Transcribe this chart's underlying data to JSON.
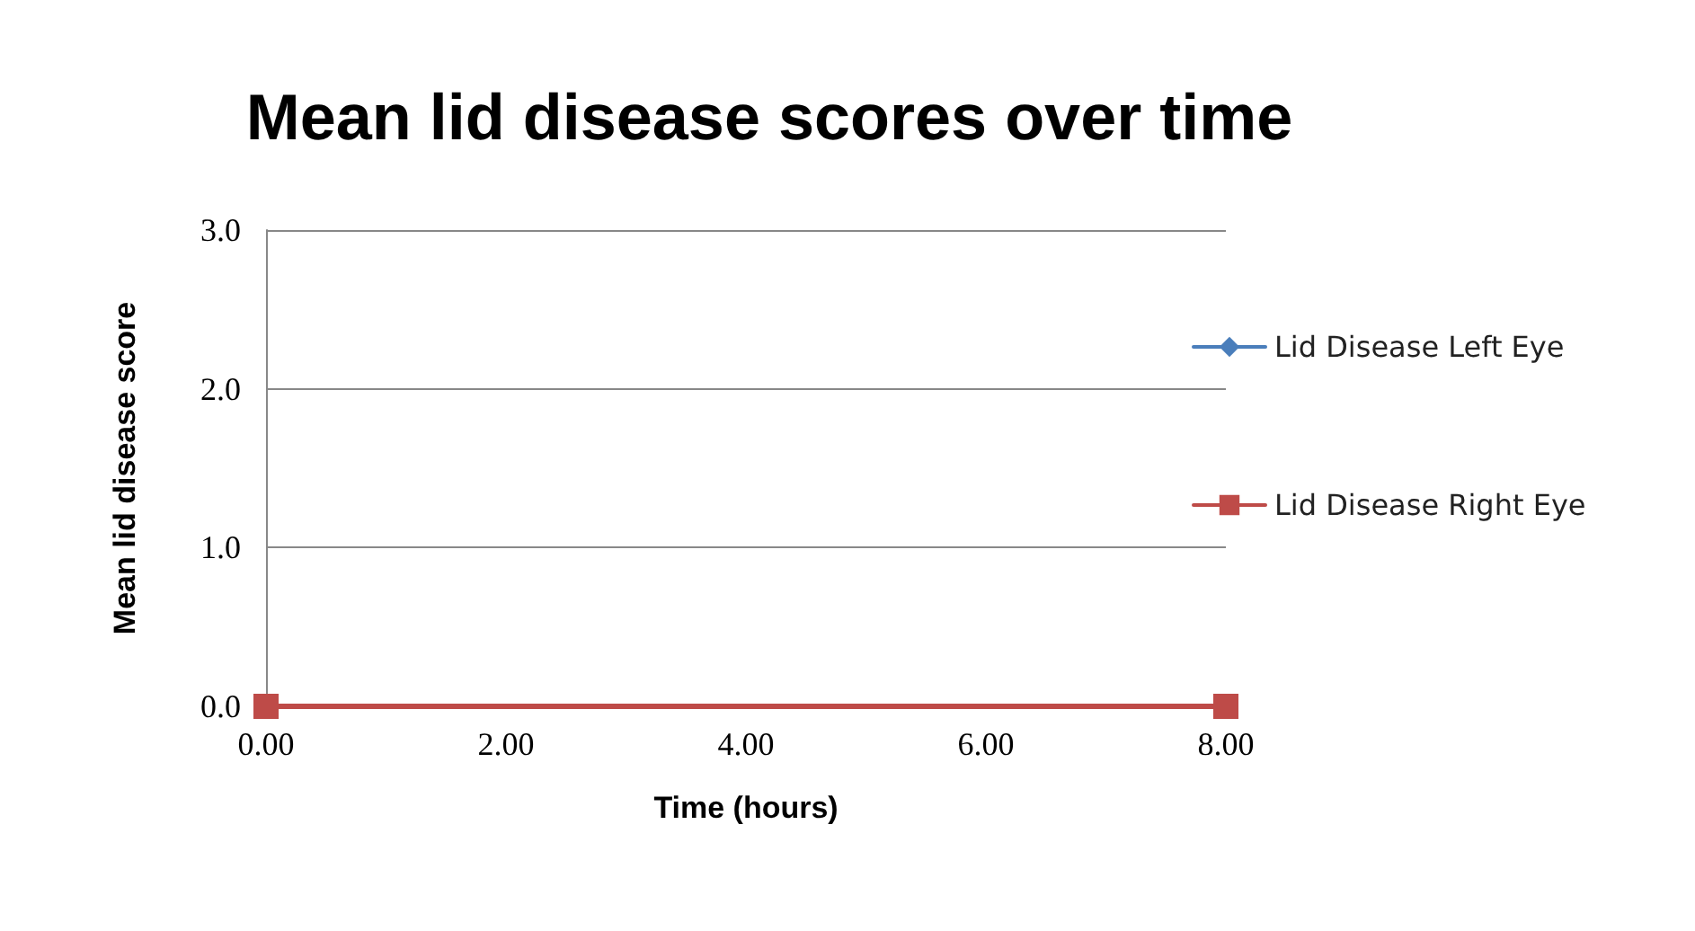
{
  "chart_data": {
    "type": "line",
    "title": "Mean lid disease scores over time",
    "xlabel": "Time (hours)",
    "ylabel": "Mean lid disease score",
    "x": [
      0,
      8
    ],
    "series": [
      {
        "name": "Lid Disease Left Eye",
        "color": "#4a7ebb",
        "values": [
          null,
          null
        ],
        "marker": "diamond"
      },
      {
        "name": "Lid Disease Right Eye",
        "color": "#be4b48",
        "values": [
          0,
          0
        ],
        "marker": "square"
      }
    ],
    "xlim": [
      0,
      8
    ],
    "xticks": [
      {
        "value": 0,
        "label": "0.00"
      },
      {
        "value": 2,
        "label": "2.00"
      },
      {
        "value": 4,
        "label": "4.00"
      },
      {
        "value": 6,
        "label": "6.00"
      },
      {
        "value": 8,
        "label": "8.00"
      }
    ],
    "ylim": [
      0,
      3
    ],
    "yticks": [
      {
        "value": 0,
        "label": "0.0"
      },
      {
        "value": 1,
        "label": "1.0"
      },
      {
        "value": 2,
        "label": "2.0"
      },
      {
        "value": 3,
        "label": "3.0"
      }
    ],
    "grid": "y",
    "legend": "right",
    "line_style": "solid"
  }
}
